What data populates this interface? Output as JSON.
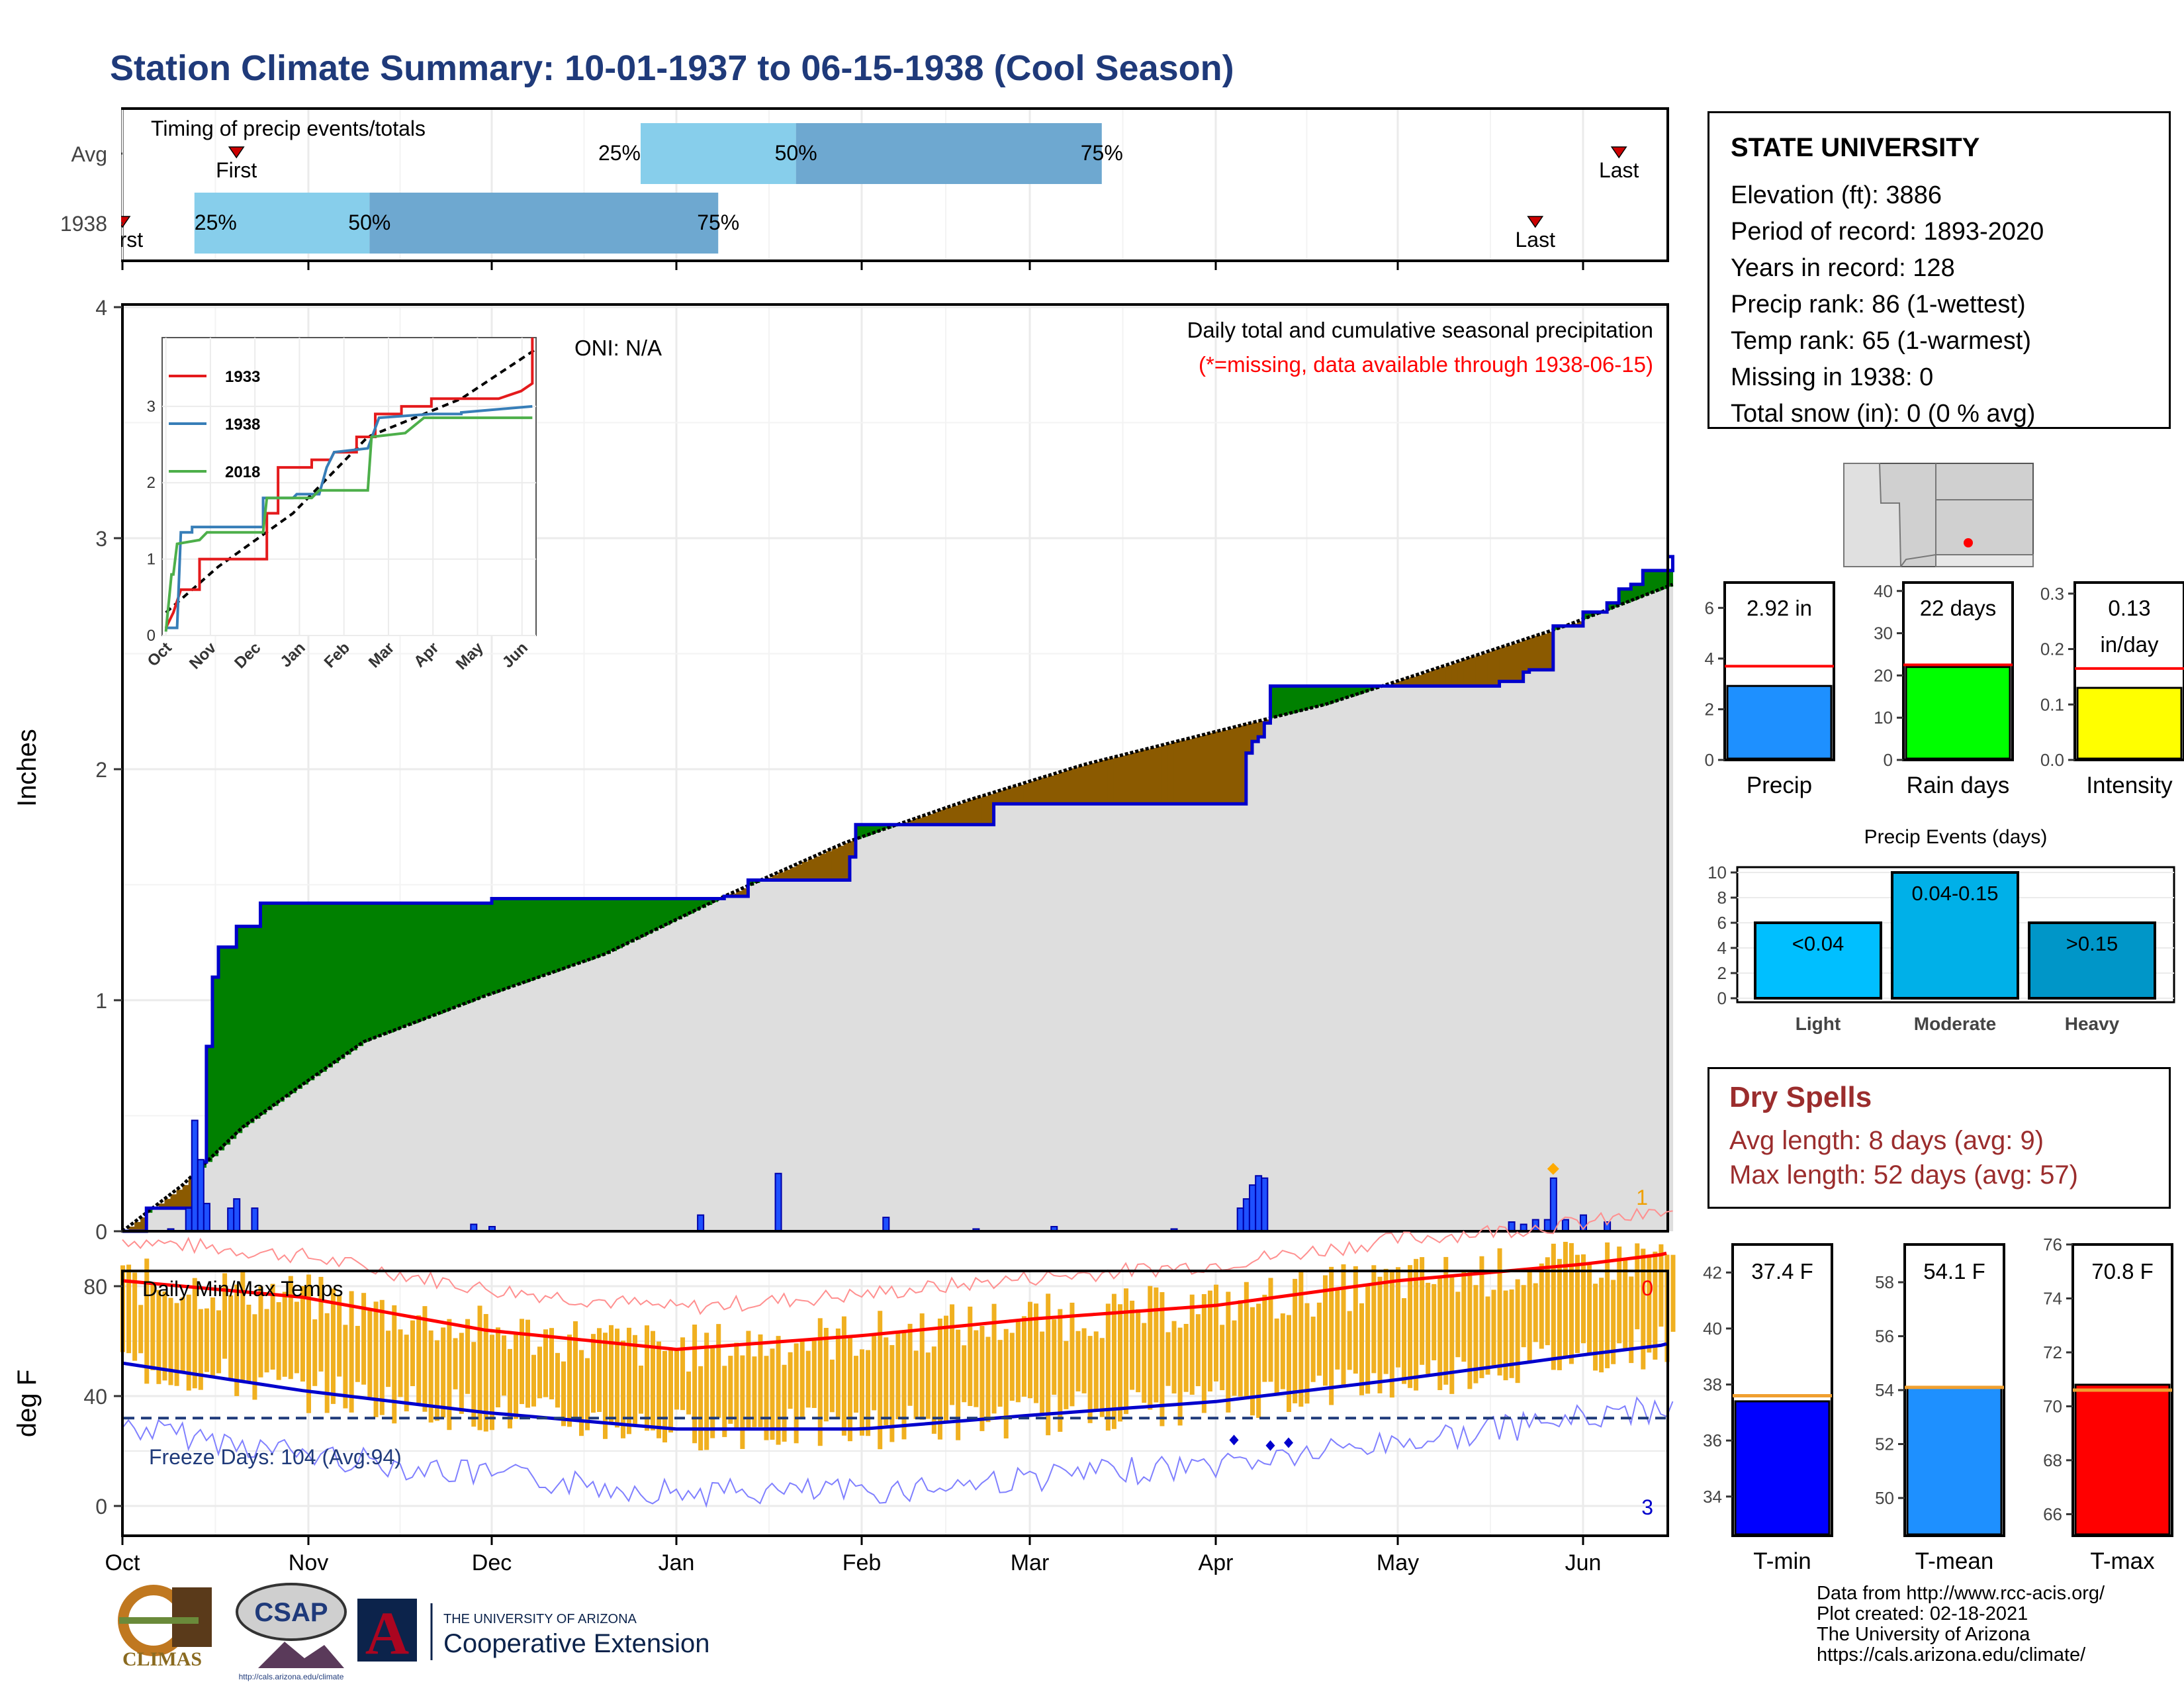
{
  "title": "Station Climate Summary: 10-01-1937 to 06-15-1938 (Cool Season)",
  "colors": {
    "title": "#1f3a7a",
    "green": "#008000",
    "brown": "#8B5A00",
    "gray_fill": "#dedede",
    "blue_line": "#0000cc",
    "red": "#ff0000",
    "light_blue": "#87ceeb",
    "mid_blue": "#6ea8d0",
    "orange": "#f0b020",
    "dry_text": "#9b2d2d"
  },
  "months": [
    "Oct",
    "Nov",
    "Dec",
    "Jan",
    "Feb",
    "Mar",
    "Apr",
    "May",
    "Jun"
  ],
  "timing": {
    "label": "Timing of precip events/totals",
    "rows": [
      {
        "name": "Avg",
        "first": "First",
        "last": "Last",
        "p25": "25%",
        "p50": "50%",
        "p75": "75%",
        "first_day": 19,
        "d25": 86,
        "d50": 112,
        "d75": 163,
        "last_day": 249
      },
      {
        "name": "1938",
        "first": "First",
        "last": "Last",
        "p25": "25%",
        "p50": "50%",
        "p75": "75%",
        "first_day": 0,
        "d25": 12,
        "d50": 41,
        "d75": 99,
        "last_day": 235
      }
    ]
  },
  "precip_panel": {
    "ylabel": "Inches",
    "yticks": [
      "0",
      "1",
      "2",
      "3",
      "4"
    ],
    "ymax": 4,
    "oni": "ONI: N/A",
    "note1": "Daily total and cumulative seasonal precipitation",
    "note2": "(*=missing, data available through 1938-06-15)",
    "missing_count": "1",
    "season_days": 258,
    "observed_cum": [
      [
        0,
        0
      ],
      [
        4,
        0.1
      ],
      [
        12,
        0.1
      ],
      [
        13,
        0.3
      ],
      [
        14,
        0.8
      ],
      [
        15,
        1.1
      ],
      [
        16,
        1.23
      ],
      [
        19,
        1.32
      ],
      [
        23,
        1.42
      ],
      [
        60,
        1.42
      ],
      [
        61,
        1.44
      ],
      [
        99,
        1.44
      ],
      [
        100,
        1.45
      ],
      [
        104,
        1.52
      ],
      [
        120,
        1.52
      ],
      [
        121,
        1.62
      ],
      [
        122,
        1.76
      ],
      [
        144,
        1.76
      ],
      [
        145,
        1.85
      ],
      [
        186,
        1.85
      ],
      [
        187,
        2.07
      ],
      [
        188,
        2.12
      ],
      [
        189,
        2.14
      ],
      [
        190,
        2.2
      ],
      [
        191,
        2.36
      ],
      [
        228,
        2.36
      ],
      [
        229,
        2.38
      ],
      [
        233,
        2.42
      ],
      [
        234,
        2.43
      ],
      [
        238,
        2.62
      ],
      [
        242,
        2.62
      ],
      [
        243,
        2.68
      ],
      [
        247,
        2.72
      ],
      [
        249,
        2.78
      ],
      [
        251,
        2.8
      ],
      [
        253,
        2.86
      ],
      [
        258,
        2.92
      ]
    ],
    "avg_cum": [
      [
        0,
        0
      ],
      [
        10,
        0.2
      ],
      [
        20,
        0.45
      ],
      [
        40,
        0.82
      ],
      [
        60,
        1.02
      ],
      [
        80,
        1.2
      ],
      [
        100,
        1.45
      ],
      [
        120,
        1.68
      ],
      [
        140,
        1.86
      ],
      [
        160,
        2.02
      ],
      [
        180,
        2.15
      ],
      [
        200,
        2.28
      ],
      [
        220,
        2.45
      ],
      [
        240,
        2.62
      ],
      [
        260,
        2.82
      ],
      [
        280,
        2.86
      ],
      [
        300,
        2.92
      ],
      [
        320,
        3.02
      ],
      [
        340,
        3.12
      ],
      [
        360,
        3.25
      ],
      [
        380,
        3.4
      ],
      [
        400,
        3.6
      ],
      [
        418,
        3.7
      ]
    ],
    "daily": [
      [
        8,
        0.01
      ],
      [
        11,
        0.1
      ],
      [
        12,
        0.48
      ],
      [
        13,
        0.31
      ],
      [
        14,
        0.12
      ],
      [
        18,
        0.1
      ],
      [
        19,
        0.14
      ],
      [
        22,
        0.1
      ],
      [
        58,
        0.03
      ],
      [
        61,
        0.02
      ],
      [
        96,
        0.07
      ],
      [
        109,
        0.25
      ],
      [
        127,
        0.06
      ],
      [
        142,
        0.01
      ],
      [
        155,
        0.02
      ],
      [
        175,
        0.01
      ],
      [
        186,
        0.1
      ],
      [
        187,
        0.14
      ],
      [
        188,
        0.2
      ],
      [
        189,
        0.24
      ],
      [
        190,
        0.23
      ],
      [
        231,
        0.04
      ],
      [
        233,
        0.03
      ],
      [
        235,
        0.05
      ],
      [
        237,
        0.05
      ],
      [
        238,
        0.23
      ],
      [
        240,
        0.05
      ],
      [
        243,
        0.07
      ],
      [
        247,
        0.04
      ]
    ],
    "chart_end_days": 418
  },
  "inset": {
    "series": [
      {
        "name": "1933",
        "color": "#e41a1c"
      },
      {
        "name": "1938",
        "color": "#377eb8"
      },
      {
        "name": "2018",
        "color": "#4daf4a"
      }
    ],
    "yticks": [
      "0",
      "1",
      "2",
      "3"
    ],
    "months": [
      "Oct",
      "Nov",
      "Dec",
      "Jan",
      "Feb",
      "Mar",
      "Apr",
      "May",
      "Jun"
    ]
  },
  "temp_panel": {
    "title": "Daily Min/Max Temps",
    "ylabel": "deg F",
    "yticks": [
      "0",
      "40",
      "80"
    ],
    "freeze": "Freeze Days: 104 (Avg:94)",
    "missing_max": "0",
    "missing_min": "3"
  },
  "station": {
    "name": "STATE UNIVERSITY",
    "lines": [
      "Elevation (ft): 3886",
      "Period of record: 1893-2020",
      "Years in record: 128",
      "Precip rank: 86 (1-wettest)",
      "Temp rank: 65 (1-warmest)",
      "Missing in 1938: 0",
      "Total snow (in): 0 (0 % avg)"
    ]
  },
  "small_bars": [
    {
      "label": "Precip",
      "value_text": "2.92 in",
      "value": 2.92,
      "avg": 3.7,
      "ymax": 7,
      "ticks": [
        "0",
        "2",
        "4",
        "6"
      ],
      "tick_vals": [
        0,
        2,
        4,
        6
      ],
      "color": "#1e90ff"
    },
    {
      "label": "Rain days",
      "value_text": "22 days",
      "value": 22,
      "avg": 22.5,
      "ymax": 42,
      "ticks": [
        "0",
        "10",
        "20",
        "30",
        "40"
      ],
      "tick_vals": [
        0,
        10,
        20,
        30,
        40
      ],
      "color": "#00ff00"
    },
    {
      "label": "Intensity",
      "value_text": "0.13",
      "value_text2": "in/day",
      "value": 0.13,
      "avg": 0.165,
      "ymax": 0.32,
      "ticks": [
        "0.0",
        "0.1",
        "0.2",
        "0.3"
      ],
      "tick_vals": [
        0,
        0.1,
        0.2,
        0.3
      ],
      "color": "#ffff00"
    }
  ],
  "events": {
    "title": "Precip Events (days)",
    "ticks": [
      "0",
      "2",
      "4",
      "6",
      "8",
      "10"
    ],
    "bars": [
      {
        "label": "Light",
        "value_text": "<0.04",
        "value": 6,
        "color": "#00bfff"
      },
      {
        "label": "Moderate",
        "value_text": "0.04-0.15",
        "value": 10,
        "color": "#00b0e8"
      },
      {
        "label": "Heavy",
        "value_text": ">0.15",
        "value": 6,
        "color": "#0096c8"
      }
    ]
  },
  "dry_spells": {
    "title": "Dry Spells",
    "avg": "Avg length: 8 days (avg: 9)",
    "max": "Max length: 52 days (avg: 57)"
  },
  "temp_bars": [
    {
      "label": "T-min",
      "value_text": "37.4 F",
      "value": 37.4,
      "avg": 37.6,
      "ymin": 32.6,
      "ymax": 43,
      "ticks": [
        "34",
        "36",
        "38",
        "40",
        "42"
      ],
      "tick_vals": [
        34,
        36,
        38,
        40,
        42
      ],
      "color": "#0000ff"
    },
    {
      "label": "T-mean",
      "value_text": "54.1 F",
      "value": 54.1,
      "avg": 54.1,
      "ymin": 48.6,
      "ymax": 59.4,
      "ticks": [
        "50",
        "52",
        "54",
        "56",
        "58"
      ],
      "tick_vals": [
        50,
        52,
        54,
        56,
        58
      ],
      "color": "#1e90ff"
    },
    {
      "label": "T-max",
      "value_text": "70.8 F",
      "value": 70.8,
      "avg": 70.6,
      "ymin": 65.2,
      "ymax": 76,
      "ticks": [
        "66",
        "68",
        "70",
        "72",
        "74",
        "76"
      ],
      "tick_vals": [
        66,
        68,
        70,
        72,
        74,
        76
      ],
      "color": "#ff0000"
    }
  ],
  "logos": {
    "climas": "CLIMAS",
    "csap": "CSAP",
    "csap_url": "http://cals.arizona.edu/climate",
    "ua_top": "THE UNIVERSITY OF ARIZONA",
    "ua_bottom": "Cooperative Extension",
    "ua_letter": "A"
  },
  "credits": [
    "Data from http://www.rcc-acis.org/",
    "Plot created: 02-18-2021",
    "The University of Arizona",
    "https://cals.arizona.edu/climate/"
  ]
}
